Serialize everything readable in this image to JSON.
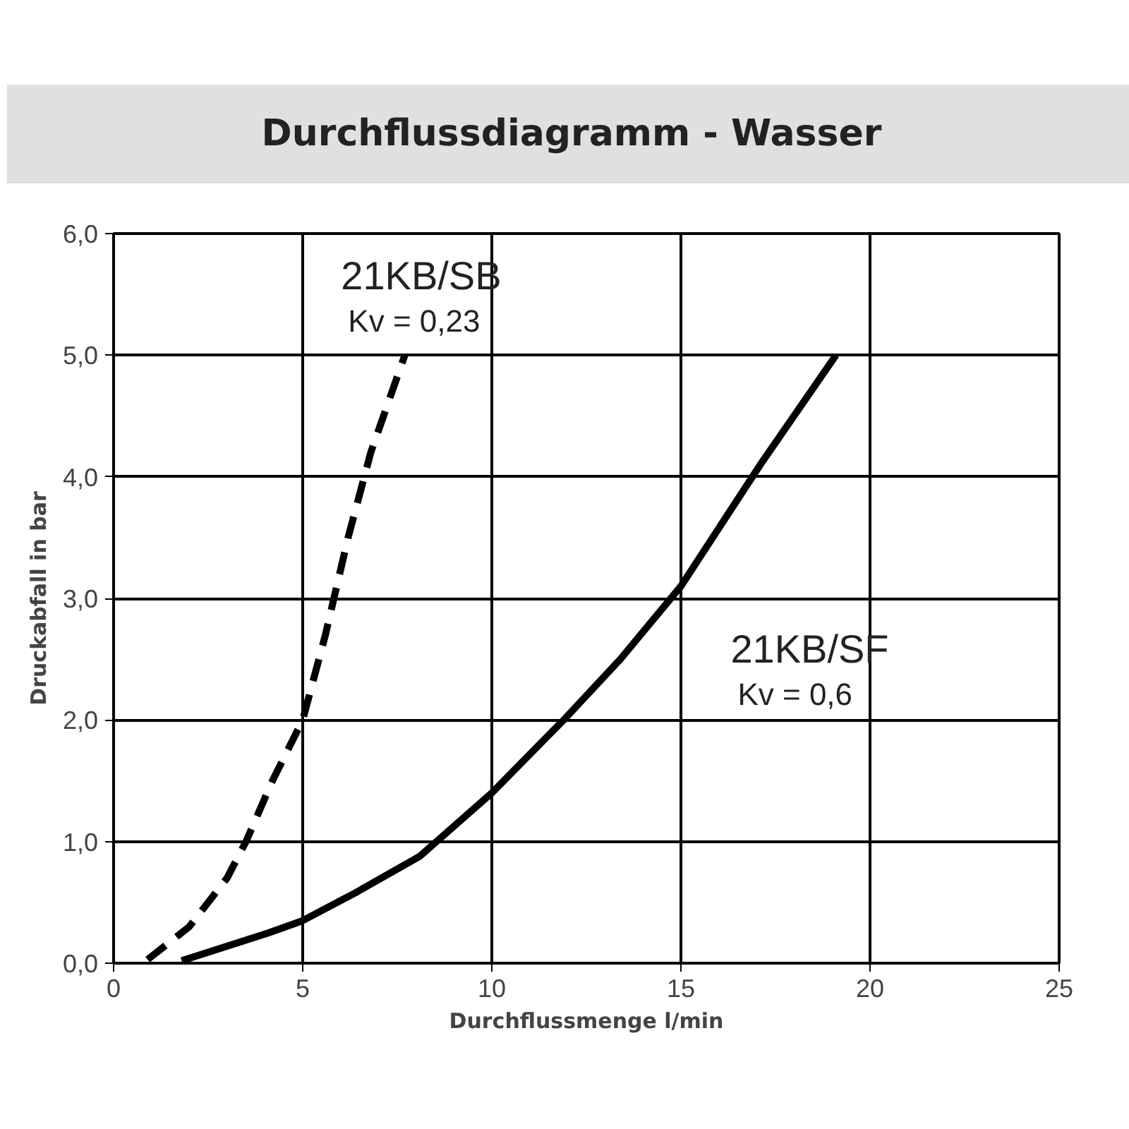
{
  "chart_data": {
    "type": "line",
    "title": "Durchflussdiagramm - Wasser",
    "xlabel": "Durchflussmenge l/min",
    "ylabel": "Druckabfall in bar",
    "xlim": [
      0,
      25
    ],
    "ylim": [
      0,
      6
    ],
    "xticks": [
      0,
      5,
      10,
      15,
      20,
      25
    ],
    "yticks": [
      {
        "value": 0,
        "label": "0,0"
      },
      {
        "value": 1,
        "label": "1,0"
      },
      {
        "value": 2,
        "label": "2,0"
      },
      {
        "value": 3,
        "label": "3,0"
      },
      {
        "value": 4,
        "label": "4,0"
      },
      {
        "value": 5,
        "label": "5,0"
      },
      {
        "value": 6,
        "label": "6,0"
      }
    ],
    "grid": true,
    "series": [
      {
        "name": "21KB/SB",
        "color": "#000000",
        "line_style": "dashed",
        "x": [
          0.9,
          2,
          3,
          3.5,
          4.2,
          5,
          5.6,
          6.2,
          6.8,
          7.7
        ],
        "values": [
          0.03,
          0.3,
          0.7,
          1.0,
          1.5,
          2.0,
          2.7,
          3.5,
          4.2,
          5.0
        ]
      },
      {
        "name": "21KB/SF",
        "color": "#000000",
        "line_style": "solid",
        "x": [
          1.8,
          4.1,
          5,
          6.4,
          8.1,
          10,
          11.9,
          13.4,
          15,
          17.1,
          19.1
        ],
        "values": [
          0.02,
          0.25,
          0.35,
          0.58,
          0.88,
          1.4,
          2.0,
          2.5,
          3.1,
          4.1,
          5.0
        ]
      }
    ],
    "annotations": [
      "Kv = 0,23",
      "Kv = 0,6"
    ]
  }
}
